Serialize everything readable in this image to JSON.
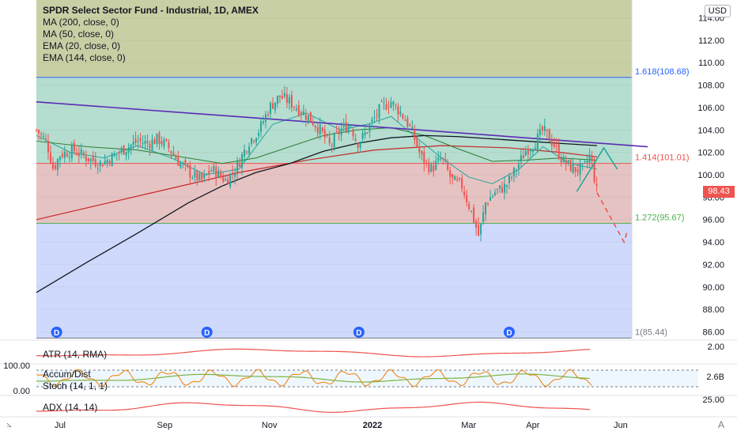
{
  "legend": {
    "title": "SPDR Select Sector Fund - Industrial, 1D, AMEX",
    "indicators": [
      "MA (200, close, 0)",
      "MA (50, close, 0)",
      "EMA (20, close, 0)",
      "EMA (144, close, 0)"
    ]
  },
  "currency_label": "USD",
  "last_price_label": "98.43",
  "colors": {
    "up": "#26a69a",
    "down": "#ef5350",
    "trendline": "#5b2bb3",
    "ma200": "#131722",
    "ma50": "#2e7d32",
    "ema20": "#26a69a",
    "ema144": "#c62828",
    "projection_up": "#26a69a",
    "projection_down": "#ef5350",
    "fib_upper_zone": "#b5ddd0",
    "fib_mid_zone": "#e6c3c3",
    "fib_lower_zone": "#cfd9fb",
    "top_zone": "#c9cfa4"
  },
  "fib_labels": [
    "1.618(108.68)",
    "1.414(101.01)",
    "1.272(95.67)",
    "1(85.44)"
  ],
  "dividend_marker": "D",
  "sub_panes": {
    "atr": {
      "label": "ATR (14, RMA)",
      "value": "2.00"
    },
    "accdist": {
      "label": "Accum/Dist",
      "value": "2.6B"
    },
    "stoch": {
      "label": "Stoch (14, 1, 1)",
      "top": "100.00",
      "bottom": "0.00"
    },
    "adx": {
      "label": "ADX (14, 14)",
      "value": "25.00"
    }
  },
  "chart_data": {
    "type": "candlestick",
    "title": "SPDR Select Sector Fund - Industrial, 1D, AMEX",
    "ylabel": "USD",
    "ylim": [
      85,
      115
    ],
    "y_ticks": [
      "86.00",
      "88.00",
      "90.00",
      "92.00",
      "94.00",
      "96.00",
      "98.00",
      "100.00",
      "102.00",
      "104.00",
      "106.00",
      "108.00",
      "110.00",
      "112.00",
      "114.00"
    ],
    "x_ticks": [
      "Jul",
      "Sep",
      "Nov",
      "2022",
      "Mar",
      "Apr",
      "Jun"
    ],
    "x_tick_days": [
      14,
      76,
      138,
      199,
      256,
      294,
      346
    ],
    "close_path": [
      [
        0,
        104
      ],
      [
        6,
        103
      ],
      [
        10,
        100.5
      ],
      [
        14,
        101.8
      ],
      [
        22,
        102.2
      ],
      [
        30,
        101.5
      ],
      [
        38,
        101
      ],
      [
        44,
        101.5
      ],
      [
        52,
        102.3
      ],
      [
        60,
        103
      ],
      [
        66,
        102.8
      ],
      [
        72,
        103.2
      ],
      [
        78,
        102.5
      ],
      [
        84,
        101.2
      ],
      [
        92,
        100
      ],
      [
        98,
        99.5
      ],
      [
        104,
        100.5
      ],
      [
        112,
        99.5
      ],
      [
        118,
        100.5
      ],
      [
        126,
        103
      ],
      [
        132,
        104
      ],
      [
        138,
        106
      ],
      [
        144,
        107
      ],
      [
        150,
        106.5
      ],
      [
        156,
        105.8
      ],
      [
        162,
        105
      ],
      [
        168,
        104
      ],
      [
        174,
        102.5
      ],
      [
        180,
        104
      ],
      [
        186,
        104.5
      ],
      [
        190,
        102.8
      ],
      [
        194,
        103.5
      ],
      [
        198,
        104.5
      ],
      [
        204,
        106
      ],
      [
        210,
        106.5
      ],
      [
        216,
        105.5
      ],
      [
        222,
        104
      ],
      [
        228,
        101.5
      ],
      [
        234,
        100.5
      ],
      [
        240,
        101.5
      ],
      [
        246,
        99.5
      ],
      [
        252,
        99
      ],
      [
        258,
        96.5
      ],
      [
        262,
        94.5
      ],
      [
        266,
        97.5
      ],
      [
        272,
        98.5
      ],
      [
        278,
        99
      ],
      [
        284,
        100.5
      ],
      [
        290,
        102.2
      ],
      [
        296,
        103
      ],
      [
        300,
        104
      ],
      [
        306,
        102.8
      ],
      [
        312,
        101.2
      ],
      [
        318,
        100.5
      ],
      [
        324,
        100.5
      ],
      [
        328,
        101.8
      ],
      [
        332,
        98.4
      ]
    ],
    "ma200": [
      [
        0,
        89.5
      ],
      [
        30,
        92.2
      ],
      [
        60,
        94.8
      ],
      [
        90,
        97.5
      ],
      [
        110,
        99
      ],
      [
        130,
        100.2
      ],
      [
        150,
        101
      ],
      [
        170,
        102.1
      ],
      [
        190,
        102.8
      ],
      [
        210,
        103.3
      ],
      [
        230,
        103.5
      ],
      [
        250,
        103.4
      ],
      [
        270,
        103.2
      ],
      [
        290,
        103
      ],
      [
        310,
        102.8
      ],
      [
        332,
        102.6
      ]
    ],
    "ma50": [
      [
        0,
        103
      ],
      [
        30,
        102.5
      ],
      [
        60,
        102.2
      ],
      [
        90,
        101.5
      ],
      [
        110,
        101
      ],
      [
        130,
        101.5
      ],
      [
        150,
        102.5
      ],
      [
        170,
        103.5
      ],
      [
        190,
        104
      ],
      [
        210,
        104.2
      ],
      [
        230,
        103.5
      ],
      [
        250,
        102.3
      ],
      [
        270,
        101.2
      ],
      [
        290,
        101.3
      ],
      [
        310,
        101.5
      ],
      [
        332,
        101.3
      ]
    ],
    "ema20": [
      [
        0,
        103.5
      ],
      [
        20,
        102
      ],
      [
        40,
        101.5
      ],
      [
        60,
        102.6
      ],
      [
        80,
        101.5
      ],
      [
        100,
        100
      ],
      [
        120,
        100.5
      ],
      [
        140,
        104.5
      ],
      [
        160,
        105.5
      ],
      [
        180,
        104
      ],
      [
        196,
        104.5
      ],
      [
        210,
        105.2
      ],
      [
        226,
        103.2
      ],
      [
        240,
        101.5
      ],
      [
        256,
        99.8
      ],
      [
        270,
        99.2
      ],
      [
        286,
        100.5
      ],
      [
        300,
        102.5
      ],
      [
        316,
        101
      ],
      [
        332,
        100.5
      ]
    ],
    "ema144": [
      [
        0,
        96
      ],
      [
        40,
        97.4
      ],
      [
        80,
        98.8
      ],
      [
        120,
        100.2
      ],
      [
        160,
        101.3
      ],
      [
        200,
        102.2
      ],
      [
        240,
        102.6
      ],
      [
        280,
        102.4
      ],
      [
        310,
        102
      ],
      [
        332,
        101.6
      ]
    ],
    "trendline": [
      [
        0,
        106.5
      ],
      [
        362,
        102.5
      ]
    ],
    "fib_levels": [
      108.68,
      101.01,
      95.67,
      85.44
    ],
    "projection_up": [
      [
        320,
        98.5
      ],
      [
        336,
        102.4
      ],
      [
        344,
        100.5
      ]
    ],
    "projection_down": [
      [
        332,
        98.4
      ],
      [
        348,
        94
      ],
      [
        350,
        95
      ]
    ],
    "dividend_days": [
      12,
      101,
      191,
      280
    ]
  }
}
